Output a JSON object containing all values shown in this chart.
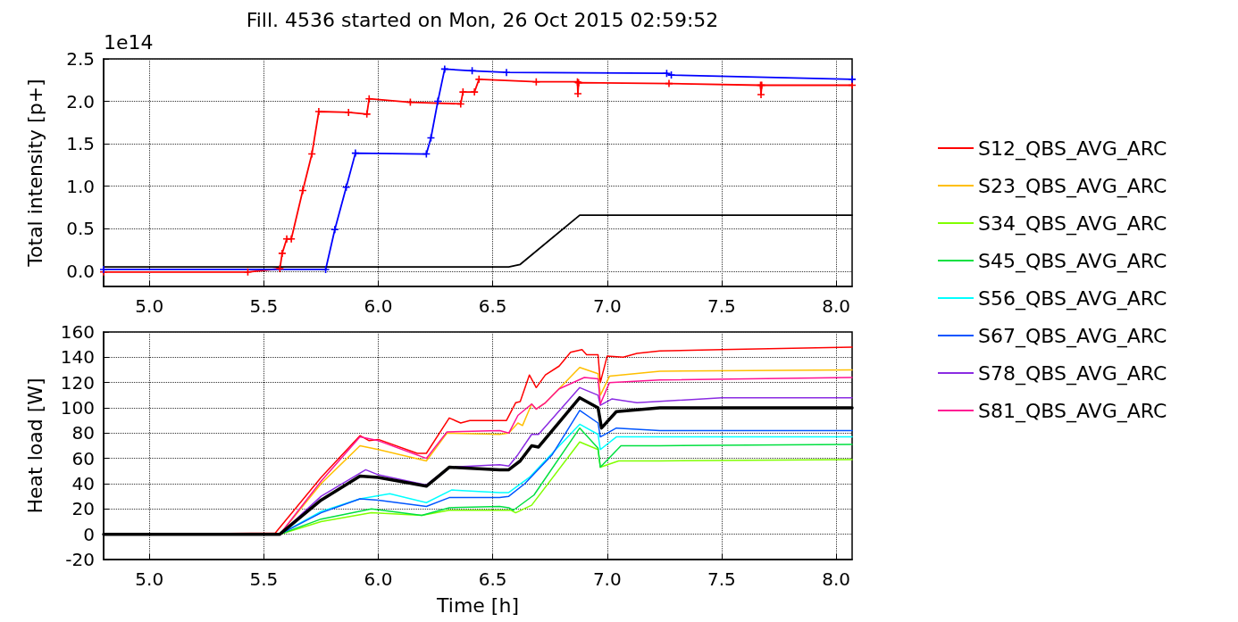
{
  "chart_data": [
    {
      "type": "line",
      "title": "Fill. 4536 started on Mon, 26 Oct 2015 02:59:52",
      "ylabel": "Total intensity [p+]",
      "annotations": [
        "1e14"
      ],
      "xlim": [
        4.8,
        8.07
      ],
      "xticks": [
        {
          "value": 5,
          "label": "5.0"
        },
        {
          "value": 5.5,
          "label": "5.5"
        },
        {
          "value": 6,
          "label": "6.0"
        },
        {
          "value": 6.5,
          "label": "6.5"
        },
        {
          "value": 7,
          "label": "7.0"
        },
        {
          "value": 7.5,
          "label": "7.5"
        },
        {
          "value": 8,
          "label": "8.0"
        }
      ],
      "ylim": [
        -0.18,
        2.5
      ],
      "yticks": [
        {
          "value": 0,
          "label": "0.0"
        },
        {
          "value": 0.5,
          "label": "0.5"
        },
        {
          "value": 1,
          "label": "1.0"
        },
        {
          "value": 1.5,
          "label": "1.5"
        },
        {
          "value": 2,
          "label": "2.0"
        },
        {
          "value": 2.5,
          "label": "2.5"
        }
      ],
      "grid": true,
      "legend": false,
      "line_style": "solid",
      "series": [
        {
          "color": "#ff0000",
          "marker": "cross",
          "x": [
            4.8,
            5.43,
            5.57,
            5.58,
            5.6,
            5.62,
            5.67,
            5.71,
            5.74,
            5.87,
            5.95,
            5.96,
            6.14,
            6.36,
            6.37,
            6.42,
            6.44,
            6.69,
            6.87,
            6.872,
            6.875,
            7.27,
            7.67,
            7.672,
            7.675,
            8.07
          ],
          "values": [
            -0.01,
            -0.01,
            0.03,
            0.21,
            0.38,
            0.38,
            0.95,
            1.38,
            1.88,
            1.87,
            1.85,
            2.03,
            1.99,
            1.97,
            2.11,
            2.11,
            2.26,
            2.23,
            2.23,
            2.09,
            2.22,
            2.21,
            2.19,
            2.08,
            2.19,
            2.19
          ]
        },
        {
          "color": "#0000ff",
          "marker": "cross",
          "x": [
            4.8,
            5.77,
            5.81,
            5.86,
            5.9,
            6.21,
            6.23,
            6.26,
            6.29,
            6.41,
            6.56,
            7.26,
            7.28,
            8.07
          ],
          "values": [
            0.02,
            0.02,
            0.49,
            0.99,
            1.39,
            1.38,
            1.57,
            2.0,
            2.38,
            2.36,
            2.34,
            2.33,
            2.31,
            2.26
          ]
        },
        {
          "color": "#000000",
          "marker": "none",
          "x": [
            4.8,
            6.57,
            6.62,
            6.88,
            8.07
          ],
          "values": [
            0.05,
            0.05,
            0.08,
            0.66,
            0.66
          ]
        }
      ]
    },
    {
      "type": "line",
      "xlabel": "Time [h]",
      "ylabel": "Heat load [W]",
      "xlim": [
        4.8,
        8.07
      ],
      "xticks": [
        {
          "value": 5,
          "label": "5.0"
        },
        {
          "value": 5.5,
          "label": "5.5"
        },
        {
          "value": 6,
          "label": "6.0"
        },
        {
          "value": 6.5,
          "label": "6.5"
        },
        {
          "value": 7,
          "label": "7.0"
        },
        {
          "value": 7.5,
          "label": "7.5"
        },
        {
          "value": 8,
          "label": "8.0"
        }
      ],
      "ylim": [
        -20,
        160
      ],
      "yticks": [
        -20,
        0,
        20,
        40,
        60,
        80,
        100,
        120,
        140,
        160
      ],
      "grid": true,
      "legend": "right",
      "line_style": "solid",
      "marker": "none",
      "series": [
        {
          "name": "S12_QBS_AVG_ARC",
          "color": "#ff0000",
          "x": [
            4.8,
            5.55,
            5.75,
            5.92,
            5.96,
            6.0,
            6.17,
            6.21,
            6.31,
            6.36,
            6.4,
            6.53,
            6.56,
            6.6,
            6.62,
            6.66,
            6.69,
            6.73,
            6.79,
            6.84,
            6.89,
            6.91,
            6.96,
            6.97,
            7.0,
            7.07,
            7.13,
            7.23,
            7.5,
            8.07
          ],
          "values": [
            0,
            1,
            45,
            78,
            74,
            75,
            64,
            64,
            92,
            88,
            90,
            90,
            90,
            104,
            105,
            126,
            116,
            126,
            133,
            144,
            146,
            142,
            142,
            120,
            141,
            140,
            143,
            145,
            146,
            148
          ]
        },
        {
          "name": "S23_QBS_AVG_ARC",
          "color": "#ffbf00",
          "x": [
            4.8,
            5.57,
            5.75,
            5.92,
            6.0,
            6.21,
            6.3,
            6.53,
            6.57,
            6.61,
            6.63,
            6.67,
            6.69,
            6.73,
            6.88,
            6.96,
            6.97,
            7.01,
            7.23,
            8.07
          ],
          "values": [
            0,
            0,
            40,
            70,
            67,
            58,
            80,
            79,
            80,
            88,
            86,
            103,
            99,
            104,
            132,
            127,
            110,
            125,
            129,
            130
          ]
        },
        {
          "name": "S34_QBS_AVG_ARC",
          "color": "#80ff00",
          "x": [
            4.8,
            5.57,
            5.75,
            5.97,
            6.19,
            6.31,
            6.53,
            6.58,
            6.6,
            6.67,
            6.88,
            6.96,
            6.97,
            7.05,
            7.23,
            8.07
          ],
          "values": [
            0,
            0,
            10,
            17,
            15,
            19,
            19,
            19,
            17,
            23,
            73,
            67,
            53,
            58,
            58,
            59
          ]
        },
        {
          "name": "S45_QBS_AVG_ARC",
          "color": "#00e040",
          "x": [
            4.8,
            5.57,
            5.75,
            5.97,
            6.19,
            6.31,
            6.53,
            6.57,
            6.59,
            6.68,
            6.88,
            6.96,
            6.97,
            7.06,
            7.23,
            8.07
          ],
          "values": [
            0,
            0,
            12,
            20,
            15,
            21,
            22,
            21,
            19,
            31,
            84,
            68,
            53,
            70,
            70,
            71
          ]
        },
        {
          "name": "S56_QBS_AVG_ARC",
          "color": "#00ffff",
          "x": [
            4.8,
            5.57,
            5.75,
            5.92,
            6.05,
            6.21,
            6.32,
            6.53,
            6.57,
            6.66,
            6.88,
            6.96,
            6.97,
            7.04,
            7.23,
            8.07
          ],
          "values": [
            0,
            0,
            18,
            28,
            32,
            25,
            35,
            33,
            33,
            45,
            87,
            79,
            67,
            77,
            77,
            77
          ]
        },
        {
          "name": "S67_QBS_AVG_ARC",
          "color": "#0055ff",
          "x": [
            4.8,
            5.57,
            5.75,
            5.92,
            6.0,
            6.21,
            6.31,
            6.53,
            6.57,
            6.64,
            6.76,
            6.88,
            6.96,
            6.97,
            7.04,
            7.23,
            8.07
          ],
          "values": [
            0,
            0,
            17,
            28,
            27,
            22,
            29,
            29,
            30,
            40,
            63,
            98,
            88,
            77,
            84,
            82,
            82
          ]
        },
        {
          "name": "S78_QBS_AVG_ARC",
          "color": "#8a2be2",
          "x": [
            4.8,
            5.57,
            5.75,
            5.945,
            6.0,
            6.21,
            6.31,
            6.53,
            6.57,
            6.61,
            6.67,
            6.7,
            6.88,
            6.96,
            6.97,
            7.02,
            7.13,
            7.5,
            8.07
          ],
          "values": [
            0,
            0,
            30,
            51,
            47,
            39,
            53,
            55,
            54,
            63,
            79,
            79,
            116,
            110,
            102,
            107,
            104,
            108,
            108
          ]
        },
        {
          "name": "S81_QBS_AVG_ARC",
          "color": "#ff1493",
          "x": [
            4.8,
            5.57,
            5.75,
            5.92,
            6.0,
            6.21,
            6.3,
            6.53,
            6.57,
            6.61,
            6.67,
            6.69,
            6.73,
            6.79,
            6.9,
            6.96,
            6.97,
            7.01,
            7.23,
            8.07
          ],
          "values": [
            0,
            0,
            42,
            77,
            74,
            60,
            81,
            82,
            80,
            94,
            103,
            99,
            104,
            115,
            124,
            123,
            103,
            120,
            122,
            124
          ]
        },
        {
          "color": "#000000",
          "x": [
            4.8,
            5.57,
            5.75,
            5.92,
            6.0,
            6.21,
            6.31,
            6.53,
            6.57,
            6.62,
            6.67,
            6.7,
            6.88,
            6.96,
            6.975,
            7.04,
            7.23,
            8.07
          ],
          "values": [
            0,
            0,
            27,
            46,
            45,
            38,
            53,
            51,
            51,
            58,
            70,
            69,
            108,
            100,
            84,
            97,
            100,
            100
          ]
        }
      ]
    }
  ]
}
